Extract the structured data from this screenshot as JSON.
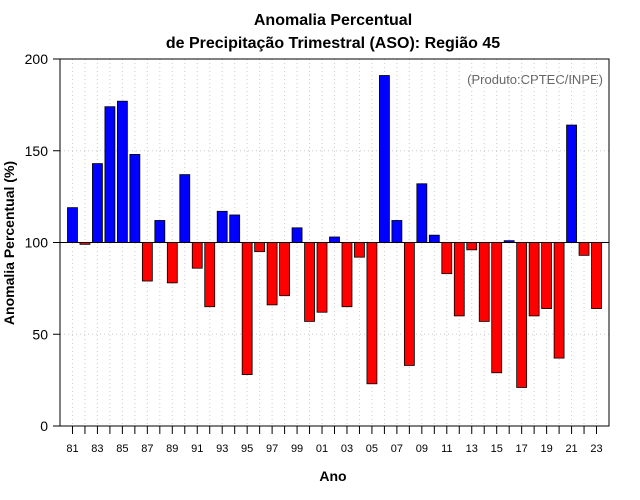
{
  "chart_data": {
    "type": "bar",
    "title": "Anomalia Percentual",
    "subtitle": "de Precipitação Trimestral (ASO): Região 45",
    "xlabel": "Ano",
    "ylabel": "Anomalia Percentual (%)",
    "credit": "(Produto:CPTEC/INPE)",
    "baseline": 100,
    "ylim": [
      0,
      200
    ],
    "yticks": [
      "0",
      "50",
      "100",
      "150",
      "200"
    ],
    "grid": true,
    "colors": {
      "above": "#0000ff",
      "below": "#ff0000",
      "grid": "#cccccc"
    },
    "categories": [
      "81",
      "82",
      "83",
      "84",
      "85",
      "86",
      "87",
      "88",
      "89",
      "90",
      "91",
      "92",
      "93",
      "94",
      "95",
      "96",
      "97",
      "98",
      "99",
      "00",
      "01",
      "02",
      "03",
      "04",
      "05",
      "06",
      "07",
      "08",
      "09",
      "10",
      "11",
      "12",
      "13",
      "14",
      "15",
      "16",
      "17",
      "18",
      "19",
      "20",
      "21",
      "22",
      "23"
    ],
    "xtick_labels": [
      "81",
      "83",
      "85",
      "87",
      "89",
      "91",
      "93",
      "95",
      "97",
      "99",
      "01",
      "03",
      "05",
      "07",
      "09",
      "11",
      "13",
      "15",
      "17",
      "19",
      "21",
      "23"
    ],
    "values": [
      119,
      99,
      143,
      174,
      177,
      148,
      79,
      112,
      78,
      137,
      86,
      65,
      117,
      115,
      28,
      95,
      66,
      71,
      108,
      57,
      62,
      103,
      65,
      92,
      23,
      191,
      112,
      33,
      132,
      104,
      83,
      60,
      96,
      57,
      29,
      101,
      21,
      60,
      64,
      37,
      164,
      93,
      64
    ]
  }
}
